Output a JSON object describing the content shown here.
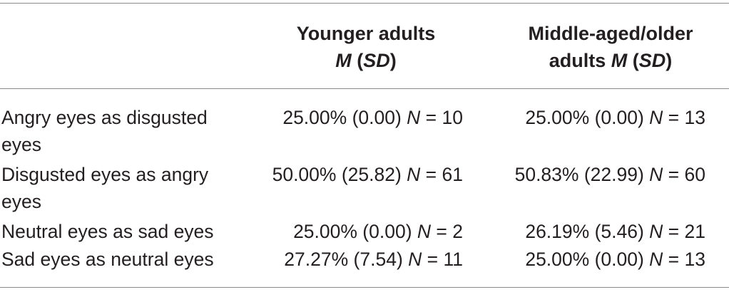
{
  "table": {
    "header": {
      "col1_line1": "Younger adults",
      "col1_line2_italic": "M",
      "col1_line2_open": " (",
      "col1_line2_sd": "SD",
      "col1_line2_close": ")",
      "col2_line1": "Middle-aged/older",
      "col2_line2_prefix": "adults ",
      "col2_line2_italic": "M",
      "col2_line2_open": " (",
      "col2_line2_sd": "SD",
      "col2_line2_close": ")"
    },
    "rows": [
      {
        "label": "Angry eyes as disgusted eyes",
        "younger_value": "25.00% (0.00) ",
        "younger_n_label": "N",
        "younger_n": " = 10",
        "older_value": "25.00% (0.00) ",
        "older_n_label": "N",
        "older_n": " = 13"
      },
      {
        "label": "Disgusted eyes as angry eyes",
        "younger_value": "50.00% (25.82) ",
        "younger_n_label": "N",
        "younger_n": " = 61",
        "older_value": "50.83% (22.99) ",
        "older_n_label": "N",
        "older_n": " = 60"
      },
      {
        "label": "Neutral eyes as sad eyes",
        "younger_value": "25.00% (0.00) ",
        "younger_n_label": "N",
        "younger_n": " = 2",
        "older_value": "26.19% (5.46) ",
        "older_n_label": "N",
        "older_n": " = 21"
      },
      {
        "label": "Sad eyes as neutral eyes",
        "younger_value": "27.27% (7.54) ",
        "younger_n_label": "N",
        "younger_n": " = 11",
        "older_value": "25.00% (0.00) ",
        "older_n_label": "N",
        "older_n": " = 13"
      }
    ]
  }
}
